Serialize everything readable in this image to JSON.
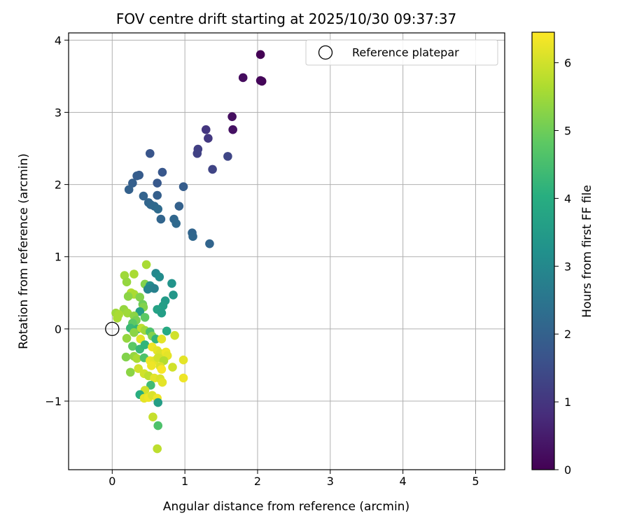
{
  "chart_data": {
    "type": "scatter",
    "title": "FOV centre drift starting at 2025/10/30 09:37:37",
    "xlabel": "Angular distance from reference (arcmin)",
    "ylabel": "Rotation from reference (arcmin)",
    "xlim": [
      -0.6,
      5.4
    ],
    "ylim": [
      -1.95,
      4.1
    ],
    "xticks": [
      0,
      1,
      2,
      3,
      4,
      5
    ],
    "xtick_labels": [
      "0",
      "1",
      "2",
      "3",
      "4",
      "5"
    ],
    "yticks": [
      -1,
      0,
      1,
      2,
      3,
      4
    ],
    "ytick_labels": [
      "−1",
      "0",
      "1",
      "2",
      "3",
      "4"
    ],
    "grid": true,
    "legend": {
      "placement": "top-right",
      "entries": [
        "Reference platepar"
      ]
    },
    "reference_point": {
      "x": 0,
      "y": 0,
      "label": "Reference platepar"
    },
    "colorbar": {
      "label": "Hours from first FF file",
      "colormap": "viridis",
      "range": [
        0,
        6.45
      ],
      "ticks": [
        0,
        1,
        2,
        3,
        4,
        5,
        6
      ],
      "tick_labels": [
        "0",
        "1",
        "2",
        "3",
        "4",
        "5",
        "6"
      ]
    },
    "points": [
      {
        "x": 2.04,
        "y": 3.8,
        "h": 0.0
      },
      {
        "x": 2.06,
        "y": 3.43,
        "h": 0.05
      },
      {
        "x": 2.04,
        "y": 3.44,
        "h": 0.1
      },
      {
        "x": 1.8,
        "y": 3.48,
        "h": 0.2
      },
      {
        "x": 1.65,
        "y": 2.94,
        "h": 0.25
      },
      {
        "x": 1.66,
        "y": 2.76,
        "h": 0.3
      },
      {
        "x": 1.29,
        "y": 2.76,
        "h": 1.0
      },
      {
        "x": 1.32,
        "y": 2.64,
        "h": 1.05
      },
      {
        "x": 1.18,
        "y": 2.49,
        "h": 1.2
      },
      {
        "x": 1.17,
        "y": 2.43,
        "h": 1.25
      },
      {
        "x": 1.38,
        "y": 2.21,
        "h": 1.3
      },
      {
        "x": 1.59,
        "y": 2.39,
        "h": 1.35
      },
      {
        "x": 0.52,
        "y": 2.43,
        "h": 1.7
      },
      {
        "x": 0.69,
        "y": 2.17,
        "h": 1.75
      },
      {
        "x": 0.62,
        "y": 2.02,
        "h": 1.8
      },
      {
        "x": 0.37,
        "y": 2.13,
        "h": 1.85
      },
      {
        "x": 0.34,
        "y": 2.12,
        "h": 1.9
      },
      {
        "x": 0.28,
        "y": 2.02,
        "h": 1.95
      },
      {
        "x": 0.23,
        "y": 1.93,
        "h": 2.0
      },
      {
        "x": 0.43,
        "y": 1.84,
        "h": 2.05
      },
      {
        "x": 0.62,
        "y": 1.85,
        "h": 1.95
      },
      {
        "x": 0.5,
        "y": 1.75,
        "h": 2.1
      },
      {
        "x": 0.53,
        "y": 1.72,
        "h": 2.15
      },
      {
        "x": 0.58,
        "y": 1.7,
        "h": 2.2
      },
      {
        "x": 0.63,
        "y": 1.66,
        "h": 2.25
      },
      {
        "x": 0.92,
        "y": 1.7,
        "h": 2.0
      },
      {
        "x": 0.98,
        "y": 1.97,
        "h": 1.9
      },
      {
        "x": 0.67,
        "y": 1.52,
        "h": 2.1
      },
      {
        "x": 0.85,
        "y": 1.52,
        "h": 2.15
      },
      {
        "x": 0.88,
        "y": 1.46,
        "h": 2.2
      },
      {
        "x": 1.1,
        "y": 1.33,
        "h": 2.1
      },
      {
        "x": 1.11,
        "y": 1.28,
        "h": 2.15
      },
      {
        "x": 1.34,
        "y": 1.18,
        "h": 2.1
      },
      {
        "x": 0.47,
        "y": 0.89,
        "h": 5.6
      },
      {
        "x": 0.6,
        "y": 0.77,
        "h": 3.0
      },
      {
        "x": 0.65,
        "y": 0.72,
        "h": 3.1
      },
      {
        "x": 0.82,
        "y": 0.63,
        "h": 3.3
      },
      {
        "x": 0.17,
        "y": 0.74,
        "h": 5.5
      },
      {
        "x": 0.3,
        "y": 0.76,
        "h": 5.6
      },
      {
        "x": 0.2,
        "y": 0.65,
        "h": 5.4
      },
      {
        "x": 0.45,
        "y": 0.62,
        "h": 5.2
      },
      {
        "x": 0.52,
        "y": 0.6,
        "h": 3.2
      },
      {
        "x": 0.55,
        "y": 0.57,
        "h": 3.0
      },
      {
        "x": 0.49,
        "y": 0.55,
        "h": 2.9
      },
      {
        "x": 0.58,
        "y": 0.56,
        "h": 2.8
      },
      {
        "x": 0.26,
        "y": 0.5,
        "h": 5.7
      },
      {
        "x": 0.3,
        "y": 0.48,
        "h": 5.6
      },
      {
        "x": 0.22,
        "y": 0.45,
        "h": 5.3
      },
      {
        "x": 0.38,
        "y": 0.44,
        "h": 5.2
      },
      {
        "x": 0.84,
        "y": 0.47,
        "h": 3.4
      },
      {
        "x": 0.73,
        "y": 0.39,
        "h": 3.5
      },
      {
        "x": 0.42,
        "y": 0.34,
        "h": 5.0
      },
      {
        "x": 0.43,
        "y": 0.3,
        "h": 5.2
      },
      {
        "x": 0.7,
        "y": 0.32,
        "h": 3.6
      },
      {
        "x": 0.62,
        "y": 0.27,
        "h": 3.7
      },
      {
        "x": 0.68,
        "y": 0.22,
        "h": 3.6
      },
      {
        "x": 0.38,
        "y": 0.24,
        "h": 3.6
      },
      {
        "x": 0.16,
        "y": 0.27,
        "h": 5.4
      },
      {
        "x": 0.05,
        "y": 0.22,
        "h": 5.5
      },
      {
        "x": 0.09,
        "y": 0.2,
        "h": 5.6
      },
      {
        "x": 0.21,
        "y": 0.22,
        "h": 5.5
      },
      {
        "x": 0.3,
        "y": 0.18,
        "h": 5.3
      },
      {
        "x": 0.33,
        "y": 0.12,
        "h": 5.1
      },
      {
        "x": 0.45,
        "y": 0.16,
        "h": 4.8
      },
      {
        "x": 0.07,
        "y": 0.15,
        "h": 5.6
      },
      {
        "x": 0.28,
        "y": 0.08,
        "h": 4.8
      },
      {
        "x": 0.25,
        "y": 0.01,
        "h": 4.3
      },
      {
        "x": 0.35,
        "y": 0.0,
        "h": 4.2
      },
      {
        "x": 0.4,
        "y": 0.01,
        "h": 5.8
      },
      {
        "x": 0.45,
        "y": -0.02,
        "h": 5.5
      },
      {
        "x": 0.52,
        "y": -0.04,
        "h": 4.6
      },
      {
        "x": 0.75,
        "y": -0.03,
        "h": 3.9
      },
      {
        "x": 0.3,
        "y": -0.05,
        "h": 5.3
      },
      {
        "x": 0.55,
        "y": -0.1,
        "h": 5.2
      },
      {
        "x": 0.6,
        "y": -0.14,
        "h": 4.2
      },
      {
        "x": 0.68,
        "y": -0.14,
        "h": 6.2
      },
      {
        "x": 0.39,
        "y": -0.14,
        "h": 6.2
      },
      {
        "x": 0.2,
        "y": -0.13,
        "h": 5.4
      },
      {
        "x": 0.86,
        "y": -0.09,
        "h": 6.0
      },
      {
        "x": 0.28,
        "y": -0.24,
        "h": 4.8
      },
      {
        "x": 0.38,
        "y": -0.28,
        "h": 4.3
      },
      {
        "x": 0.45,
        "y": -0.22,
        "h": 4.2
      },
      {
        "x": 0.55,
        "y": -0.25,
        "h": 6.3
      },
      {
        "x": 0.62,
        "y": -0.3,
        "h": 6.2
      },
      {
        "x": 0.66,
        "y": -0.34,
        "h": 6.1
      },
      {
        "x": 0.74,
        "y": -0.32,
        "h": 6.3
      },
      {
        "x": 0.76,
        "y": -0.37,
        "h": 6.2
      },
      {
        "x": 0.19,
        "y": -0.39,
        "h": 5.2
      },
      {
        "x": 0.3,
        "y": -0.38,
        "h": 5.4
      },
      {
        "x": 0.34,
        "y": -0.41,
        "h": 5.6
      },
      {
        "x": 0.44,
        "y": -0.4,
        "h": 4.6
      },
      {
        "x": 0.52,
        "y": -0.44,
        "h": 6.3
      },
      {
        "x": 0.58,
        "y": -0.44,
        "h": 6.2
      },
      {
        "x": 0.63,
        "y": -0.4,
        "h": 6.0
      },
      {
        "x": 0.71,
        "y": -0.44,
        "h": 5.7
      },
      {
        "x": 0.98,
        "y": -0.43,
        "h": 6.2
      },
      {
        "x": 0.66,
        "y": -0.52,
        "h": 6.1
      },
      {
        "x": 0.54,
        "y": -0.51,
        "h": 6.3
      },
      {
        "x": 0.68,
        "y": -0.56,
        "h": 6.4
      },
      {
        "x": 0.83,
        "y": -0.53,
        "h": 6.0
      },
      {
        "x": 0.25,
        "y": -0.6,
        "h": 5.3
      },
      {
        "x": 0.36,
        "y": -0.55,
        "h": 6.0
      },
      {
        "x": 0.44,
        "y": -0.62,
        "h": 6.0
      },
      {
        "x": 0.5,
        "y": -0.65,
        "h": 5.8
      },
      {
        "x": 0.58,
        "y": -0.68,
        "h": 6.2
      },
      {
        "x": 0.66,
        "y": -0.69,
        "h": 6.1
      },
      {
        "x": 0.69,
        "y": -0.74,
        "h": 6.2
      },
      {
        "x": 0.98,
        "y": -0.68,
        "h": 6.3
      },
      {
        "x": 0.53,
        "y": -0.78,
        "h": 4.4
      },
      {
        "x": 0.45,
        "y": -0.85,
        "h": 6.0
      },
      {
        "x": 0.38,
        "y": -0.91,
        "h": 4.0
      },
      {
        "x": 0.44,
        "y": -0.96,
        "h": 6.2
      },
      {
        "x": 0.5,
        "y": -0.95,
        "h": 6.3
      },
      {
        "x": 0.55,
        "y": -0.92,
        "h": 6.1
      },
      {
        "x": 0.62,
        "y": -0.96,
        "h": 6.3
      },
      {
        "x": 0.63,
        "y": -1.02,
        "h": 3.6
      },
      {
        "x": 0.56,
        "y": -1.22,
        "h": 5.9
      },
      {
        "x": 0.63,
        "y": -1.34,
        "h": 4.6
      },
      {
        "x": 0.62,
        "y": -1.66,
        "h": 5.8
      }
    ]
  }
}
